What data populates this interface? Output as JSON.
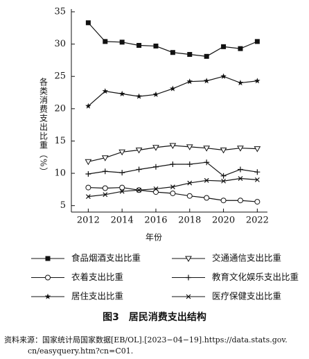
{
  "chart_data": {
    "type": "line",
    "title": "图3　居民消费支出结构",
    "y_label": "各类消费支出比重（%）",
    "x_label": "年份",
    "source": [
      "资料来源：国家统计局国家数据[EB/OL].[2023−04−19].https://data.stats.gov.",
      "cn/easyquery.htm?cn=C01."
    ],
    "x": [
      2012,
      2013,
      2014,
      2015,
      2016,
      2017,
      2018,
      2019,
      2020,
      2021,
      2022
    ],
    "xlim": [
      2011,
      2022.6
    ],
    "xticks": [
      2012,
      2014,
      2016,
      2018,
      2020,
      2022
    ],
    "ylim": [
      4,
      35
    ],
    "yticks": [
      5,
      10,
      15,
      20,
      25,
      30,
      35
    ],
    "series": [
      {
        "name": "食品烟酒支出比重",
        "color": "#111111",
        "marker": "square",
        "values": [
          33.3,
          30.4,
          30.3,
          29.8,
          29.7,
          28.7,
          28.4,
          28.1,
          29.6,
          29.3,
          30.4
        ]
      },
      {
        "name": "交通通信支出比重",
        "color": "#111111",
        "marker": "triangle-down",
        "values": [
          11.8,
          12.4,
          13.3,
          13.6,
          14.0,
          14.3,
          14.1,
          13.9,
          13.6,
          13.9,
          13.8
        ]
      },
      {
        "name": "衣着支出比重",
        "color": "#111111",
        "marker": "circle",
        "values": [
          7.8,
          7.7,
          7.8,
          7.4,
          7.1,
          6.9,
          6.5,
          6.2,
          5.8,
          5.8,
          5.6
        ]
      },
      {
        "name": "教育文化娱乐支出比重",
        "color": "#111111",
        "marker": "plus",
        "values": [
          9.9,
          10.3,
          10.1,
          10.6,
          11.0,
          11.4,
          11.4,
          11.7,
          9.6,
          10.6,
          10.2
        ]
      },
      {
        "name": "居住支出比重",
        "color": "#111111",
        "marker": "star",
        "values": [
          20.4,
          22.7,
          22.3,
          21.9,
          22.2,
          23.1,
          24.2,
          24.3,
          25.0,
          24.0,
          24.3
        ]
      },
      {
        "name": "医疗保健支出比重",
        "color": "#111111",
        "marker": "x",
        "values": [
          6.4,
          6.7,
          7.2,
          7.4,
          7.6,
          7.9,
          8.5,
          8.9,
          8.8,
          9.2,
          9.0
        ]
      }
    ]
  }
}
